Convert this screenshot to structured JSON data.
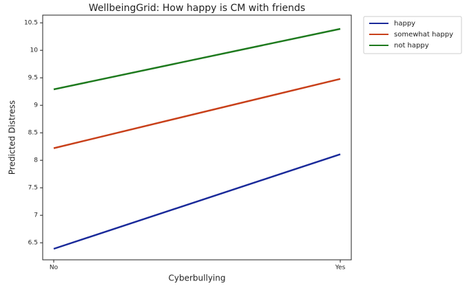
{
  "chart_data": {
    "type": "line",
    "title": "WellbeingGrid: How happy is CM with friends",
    "xlabel": "Cyberbullying",
    "ylabel": "Predicted Distress",
    "categories": [
      "No",
      "Yes"
    ],
    "series": [
      {
        "name": "happy",
        "color": "#1a2a9a",
        "values": [
          6.39,
          8.11
        ]
      },
      {
        "name": "somewhat happy",
        "color": "#c8401a",
        "values": [
          8.22,
          9.48
        ]
      },
      {
        "name": "not happy",
        "color": "#1e7a1e",
        "values": [
          9.29,
          10.39
        ]
      }
    ],
    "ylim": [
      6.19,
      10.64
    ],
    "yticks": [
      6.5,
      7.0,
      7.5,
      8.0,
      8.5,
      9.0,
      9.5,
      10.0,
      10.5
    ],
    "grid": false,
    "legend": "outside upper right"
  }
}
